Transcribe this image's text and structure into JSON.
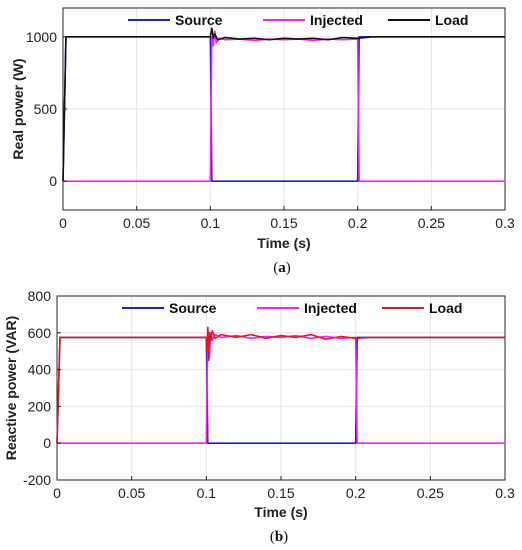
{
  "chart_data": [
    {
      "type": "line",
      "caption_letter": "a",
      "title": "",
      "xlabel": "Time (s)",
      "ylabel": "Real power (W)",
      "xlim": [
        0,
        0.3
      ],
      "ylim": [
        -200,
        1200
      ],
      "xticks": [
        0,
        0.05,
        0.1,
        0.15,
        0.2,
        0.25,
        0.3
      ],
      "xtick_labels": [
        "0",
        "0.05",
        "0.1",
        "0.15",
        "0.2",
        "0.25",
        "0.3"
      ],
      "yticks": [
        0,
        500,
        1000
      ],
      "ytick_labels": [
        "0",
        "500",
        "1000"
      ],
      "grid": true,
      "legend_position": "top",
      "series": [
        {
          "name": "Source",
          "color": "#1f1fd6",
          "x": [
            0,
            0.002,
            0.1,
            0.101,
            0.2,
            0.201,
            0.3
          ],
          "y": [
            0,
            1000,
            1000,
            0,
            0,
            1000,
            1000
          ]
        },
        {
          "name": "Injected",
          "color": "#ff1aff",
          "x": [
            0,
            0.1,
            0.101,
            0.102,
            0.103,
            0.104,
            0.106,
            0.11,
            0.12,
            0.13,
            0.14,
            0.15,
            0.16,
            0.17,
            0.18,
            0.19,
            0.2,
            0.201,
            0.3
          ],
          "y": [
            0,
            0,
            1000,
            940,
            1040,
            960,
            990,
            980,
            985,
            975,
            985,
            980,
            985,
            975,
            985,
            980,
            985,
            0,
            0
          ]
        },
        {
          "name": "Load",
          "color": "#111111",
          "x": [
            0,
            0.002,
            0.1,
            0.101,
            0.102,
            0.103,
            0.105,
            0.11,
            0.12,
            0.13,
            0.14,
            0.15,
            0.16,
            0.17,
            0.18,
            0.19,
            0.2,
            0.21,
            0.3
          ],
          "y": [
            0,
            1000,
            1000,
            1060,
            990,
            1020,
            980,
            995,
            985,
            990,
            980,
            990,
            985,
            990,
            980,
            995,
            990,
            1000,
            1000
          ]
        }
      ]
    },
    {
      "type": "line",
      "caption_letter": "b",
      "title": "",
      "xlabel": "Time (s)",
      "ylabel": "Reactive power (VAR)",
      "xlim": [
        0,
        0.3
      ],
      "ylim": [
        -200,
        800
      ],
      "xticks": [
        0,
        0.05,
        0.1,
        0.15,
        0.2,
        0.25,
        0.3
      ],
      "xtick_labels": [
        "0",
        "0.05",
        "0.1",
        "0.15",
        "0.2",
        "0.25",
        "0.3"
      ],
      "yticks": [
        -200,
        0,
        200,
        400,
        600,
        800
      ],
      "ytick_labels": [
        "-200",
        "0",
        "200",
        "400",
        "600",
        "800"
      ],
      "grid": true,
      "legend_position": "top",
      "series": [
        {
          "name": "Source",
          "color": "#1f1fd6",
          "x": [
            0,
            0.002,
            0.1,
            0.101,
            0.2,
            0.201,
            0.3
          ],
          "y": [
            0,
            575,
            575,
            0,
            0,
            575,
            575
          ]
        },
        {
          "name": "Injected",
          "color": "#ff1aff",
          "x": [
            0,
            0.1,
            0.101,
            0.102,
            0.103,
            0.104,
            0.106,
            0.11,
            0.12,
            0.13,
            0.14,
            0.15,
            0.16,
            0.17,
            0.18,
            0.19,
            0.2,
            0.201,
            0.3
          ],
          "y": [
            0,
            0,
            620,
            460,
            600,
            560,
            590,
            575,
            585,
            570,
            580,
            575,
            585,
            570,
            580,
            570,
            575,
            0,
            0
          ]
        },
        {
          "name": "Load",
          "color": "#e8161c",
          "x": [
            0,
            0.002,
            0.1,
            0.1005,
            0.101,
            0.1015,
            0.102,
            0.103,
            0.104,
            0.106,
            0.11,
            0.12,
            0.13,
            0.14,
            0.15,
            0.16,
            0.17,
            0.18,
            0.19,
            0.2,
            0.21,
            0.3
          ],
          "y": [
            0,
            575,
            575,
            500,
            630,
            450,
            600,
            560,
            610,
            570,
            590,
            575,
            590,
            570,
            585,
            575,
            590,
            565,
            580,
            570,
            575,
            575
          ]
        }
      ]
    }
  ]
}
